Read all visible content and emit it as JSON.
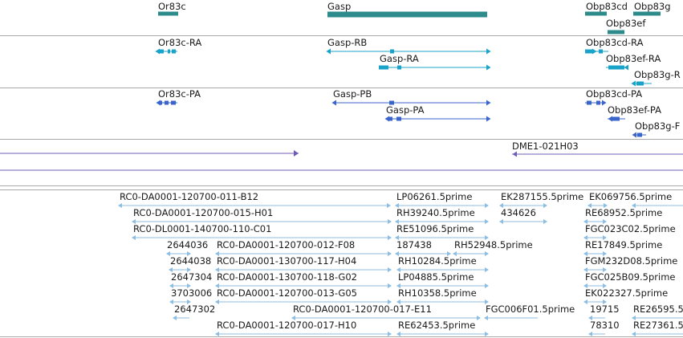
{
  "colors": {
    "gene": "#2e8b8b",
    "transcript": "#1aa3c9",
    "protein": "#3a66cc",
    "clone": "#6f5cb8",
    "est": "#8dbde0",
    "divider": "#a9a9a9",
    "text": "#1a1a1a"
  },
  "tracks": {
    "genes": {
      "labels": [
        "Or83c",
        "Gasp",
        "Obp83cd",
        "Obp83g",
        "Obp83ef"
      ]
    },
    "transcripts": {
      "labels": [
        "Or83c-RA",
        "Gasp-RB",
        "Obp83cd-RA",
        "Gasp-RA",
        "Obp83ef-RA",
        "Obp83g-R"
      ]
    },
    "proteins": {
      "labels": [
        "Or83c-PA",
        "Gasp-PB",
        "Obp83cd-PA",
        "Gasp-PA",
        "Obp83ef-PA",
        "Obp83g-F"
      ]
    },
    "clones": {
      "labels": [
        "DME1-021H03"
      ]
    },
    "ests": {
      "labels": [
        "RC0-DA0001-120700-011-B12",
        "LP06261.5prime",
        "EK287155.5prime",
        "EK069756.5prime",
        "RC0-DA0001-120700-015-H01",
        "RH39240.5prime",
        "434626",
        "RE68952.5prime",
        "RC0-DL0001-140700-110-C01",
        "RE51096.5prime",
        "FGC023C02.5prime",
        "2644036",
        "RC0-DA0001-120700-012-F08",
        "187438",
        "RH52948.5prime",
        "RE17849.5prime",
        "2644038",
        "RC0-DA0001-130700-117-H04",
        "RH10284.5prime",
        "FGM232D08.5prime",
        "2647304",
        "RC0-DA0001-130700-118-G02",
        "LP04885.5prime",
        "FGC025B09.5prime",
        "3703006",
        "RC0-DA0001-120700-013-G05",
        "RH10358.5prime",
        "EK022327.5prime",
        "2647302",
        "RC0-DA0001-120700-017-E11",
        "FGC006F01.5prime",
        "19715",
        "RE26595.5",
        "RC0-DA0001-120700-017-H10",
        "RE62453.5prime",
        "78310",
        "RE27361.5"
      ]
    }
  }
}
